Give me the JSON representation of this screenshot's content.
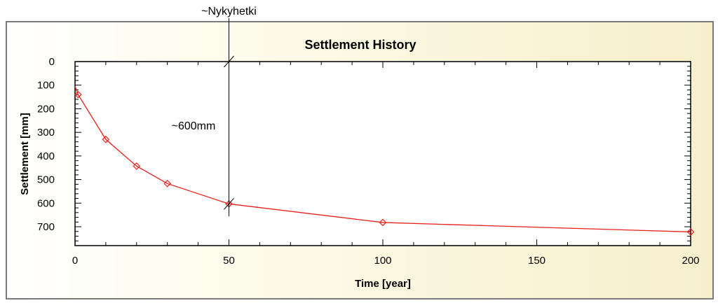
{
  "chart_data": {
    "type": "line",
    "title": "Settlement History",
    "xlabel": "Time [year]",
    "ylabel": "Settlement [mm]",
    "xlim": [
      0,
      200
    ],
    "ylim": [
      0,
      780
    ],
    "y_inverted": true,
    "x_ticks": [
      0,
      50,
      100,
      150,
      200
    ],
    "y_ticks": [
      0,
      100,
      200,
      300,
      400,
      500,
      600,
      700
    ],
    "grid": false,
    "legend": "none",
    "series": [
      {
        "color": "#e8201a",
        "marker": "diamond",
        "x": [
          0,
          1,
          10,
          20,
          30,
          50,
          100,
          200
        ],
        "y": [
          105,
          140,
          330,
          443,
          517,
          603,
          682,
          722
        ]
      }
    ],
    "annotations": {
      "vline_label": "~Nykyhetki",
      "vline_x": 50,
      "value_label": "~600mm"
    }
  }
}
